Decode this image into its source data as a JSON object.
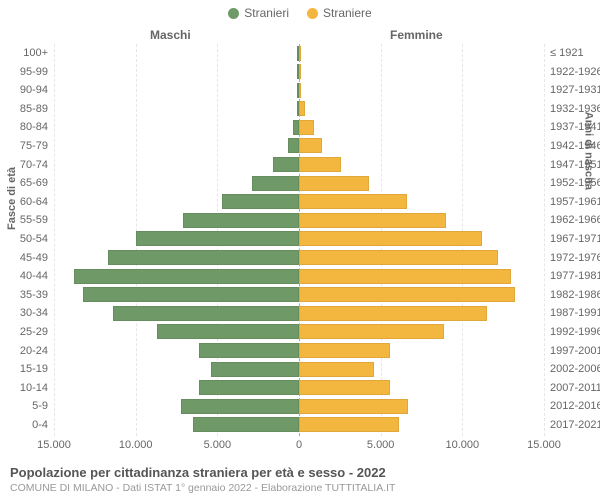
{
  "chart": {
    "type": "population-pyramid",
    "legend": [
      {
        "label": "Stranieri",
        "color": "#6f9a68"
      },
      {
        "label": "Straniere",
        "color": "#f3b63f"
      }
    ],
    "col_headers": {
      "left": "Maschi",
      "right": "Femmine"
    },
    "y_title_left": "Fasce di età",
    "y_title_right": "Anni di nascita",
    "colors": {
      "male": "#6f9a68",
      "female": "#f3b63f",
      "grid": "#e6e6e6",
      "center": "#aaaaaa",
      "text": "#666666",
      "background": "#ffffff"
    },
    "x_max": 15000,
    "x_ticks": [
      {
        "v": -15000,
        "label": "15.000"
      },
      {
        "v": -10000,
        "label": "10.000"
      },
      {
        "v": -5000,
        "label": "5.000"
      },
      {
        "v": 0,
        "label": "0"
      },
      {
        "v": 5000,
        "label": "5.000"
      },
      {
        "v": 10000,
        "label": "10.000"
      },
      {
        "v": 15000,
        "label": "15.000"
      }
    ],
    "rows": [
      {
        "age": "100+",
        "birth": "≤ 1921",
        "m": 0,
        "f": 0
      },
      {
        "age": "95-99",
        "birth": "1922-1926",
        "m": 0,
        "f": 30
      },
      {
        "age": "90-94",
        "birth": "1927-1931",
        "m": 30,
        "f": 80
      },
      {
        "age": "85-89",
        "birth": "1932-1936",
        "m": 120,
        "f": 350
      },
      {
        "age": "80-84",
        "birth": "1937-1941",
        "m": 350,
        "f": 900
      },
      {
        "age": "75-79",
        "birth": "1942-1946",
        "m": 700,
        "f": 1400
      },
      {
        "age": "70-74",
        "birth": "1947-1951",
        "m": 1600,
        "f": 2600
      },
      {
        "age": "65-69",
        "birth": "1952-1956",
        "m": 2900,
        "f": 4300
      },
      {
        "age": "60-64",
        "birth": "1957-1961",
        "m": 4700,
        "f": 6600
      },
      {
        "age": "55-59",
        "birth": "1962-1966",
        "m": 7100,
        "f": 9000
      },
      {
        "age": "50-54",
        "birth": "1967-1971",
        "m": 10000,
        "f": 11200
      },
      {
        "age": "45-49",
        "birth": "1972-1976",
        "m": 11700,
        "f": 12200
      },
      {
        "age": "40-44",
        "birth": "1977-1981",
        "m": 13800,
        "f": 13000
      },
      {
        "age": "35-39",
        "birth": "1982-1986",
        "m": 13200,
        "f": 13200
      },
      {
        "age": "30-34",
        "birth": "1987-1991",
        "m": 11400,
        "f": 11500
      },
      {
        "age": "25-29",
        "birth": "1992-1996",
        "m": 8700,
        "f": 8900
      },
      {
        "age": "20-24",
        "birth": "1997-2001",
        "m": 6100,
        "f": 5600
      },
      {
        "age": "15-19",
        "birth": "2002-2006",
        "m": 5400,
        "f": 4600
      },
      {
        "age": "10-14",
        "birth": "2007-2011",
        "m": 6100,
        "f": 5600
      },
      {
        "age": "5-9",
        "birth": "2012-2016",
        "m": 7200,
        "f": 6700
      },
      {
        "age": "0-4",
        "birth": "2017-2021",
        "m": 6500,
        "f": 6100
      }
    ],
    "fontsize": {
      "tick": 11,
      "legend": 12,
      "title": 13,
      "sub": 10.5
    }
  },
  "footer": {
    "title": "Popolazione per cittadinanza straniera per età e sesso - 2022",
    "sub": "COMUNE DI MILANO - Dati ISTAT 1° gennaio 2022 - Elaborazione TUTTITALIA.IT"
  }
}
